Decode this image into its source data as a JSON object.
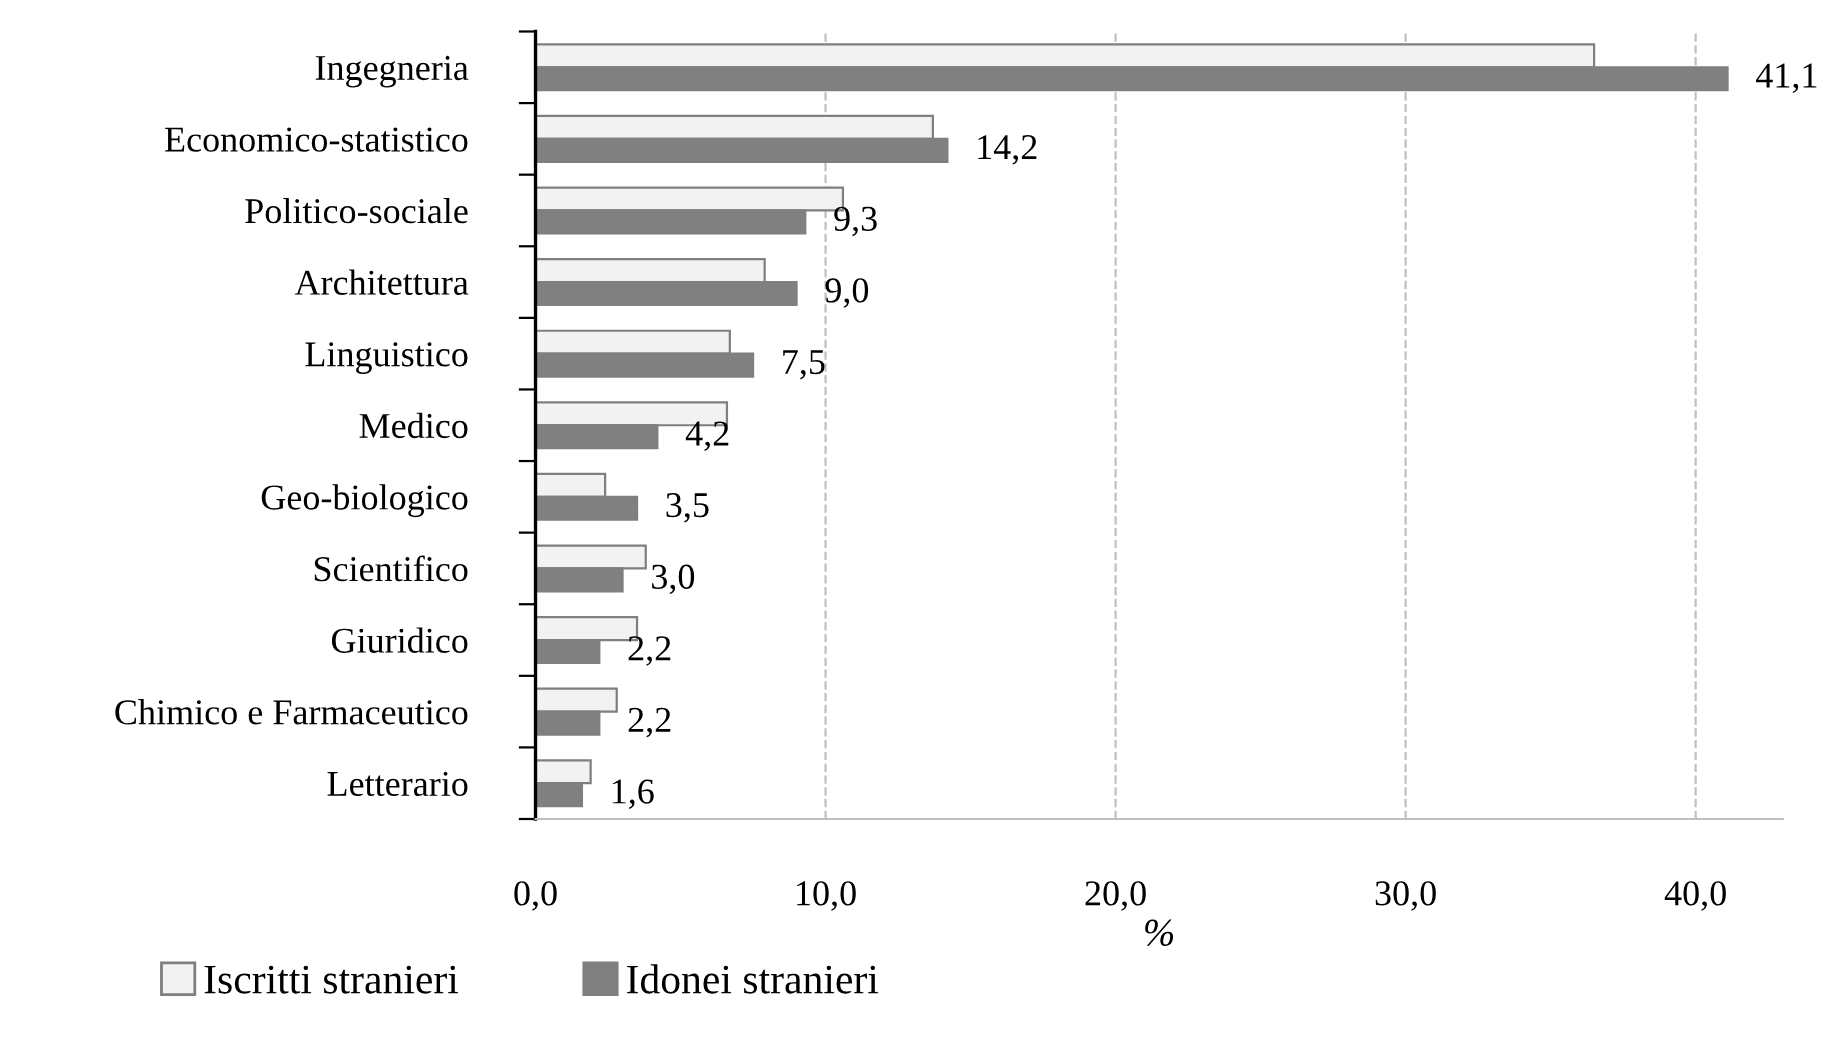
{
  "chart_data": {
    "type": "bar",
    "orientation": "horizontal",
    "xlabel": "%",
    "categories": [
      "Ingegneria",
      "Economico-statistico",
      "Politico-sociale",
      "Architettura",
      "Linguistico",
      "Medico",
      "Geo-biologico",
      "Scientifico",
      "Giuridico",
      "Chimico e Farmaceutico",
      "Letterario"
    ],
    "series": [
      {
        "name": "Iscritti stranieri",
        "color": "#f2f2f2",
        "values": [
          36.5,
          13.7,
          10.6,
          7.9,
          6.7,
          6.6,
          2.4,
          3.8,
          3.5,
          2.8,
          1.9
        ]
      },
      {
        "name": "Idonei stranieri",
        "color": "#808080",
        "values": [
          41.1,
          14.2,
          9.3,
          9.0,
          7.5,
          4.2,
          3.5,
          3.0,
          2.2,
          2.2,
          1.6
        ],
        "value_labels": [
          "41,1",
          "14,2",
          "9,3",
          "9,0",
          "7,5",
          "4,2",
          "3,5",
          "3,0",
          "2,2",
          "2,2",
          "1,6"
        ]
      }
    ],
    "xlim": [
      0,
      43
    ],
    "xticks": [
      {
        "value": 0,
        "label": "0,0"
      },
      {
        "value": 10,
        "label": "10,0"
      },
      {
        "value": 20,
        "label": "20,0"
      },
      {
        "value": 30,
        "label": "30,0"
      },
      {
        "value": 40,
        "label": "40,0"
      }
    ],
    "grid": "x",
    "legend": "bottom"
  }
}
